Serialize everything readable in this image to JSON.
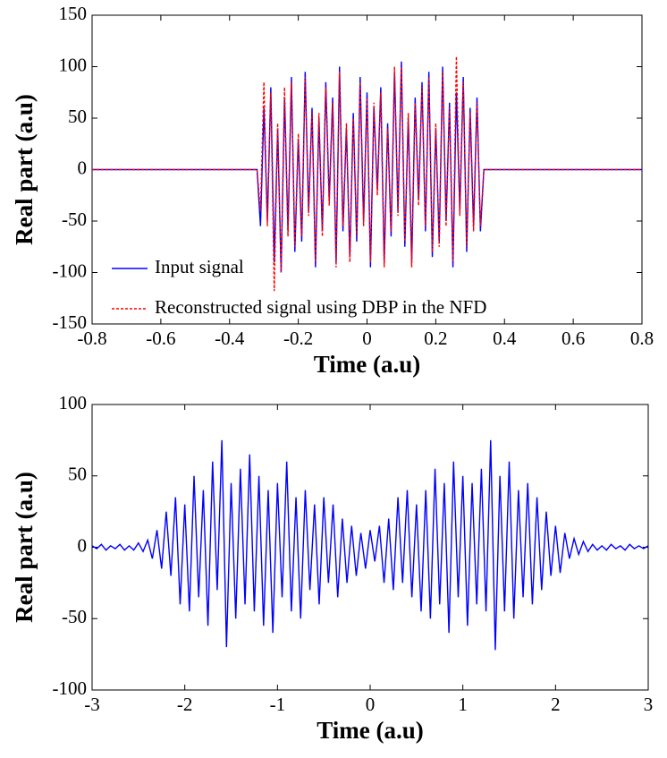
{
  "chart_data": [
    {
      "type": "line",
      "ylabel": "Real part (a.u)",
      "xlabel": "Time (a.u)",
      "xlim": [
        -0.8,
        0.8
      ],
      "xticks": [
        -0.8,
        -0.6,
        -0.4,
        -0.2,
        0,
        0.2,
        0.4,
        0.6,
        0.8
      ],
      "ylim": [
        -150,
        150
      ],
      "yticks": [
        -150,
        -100,
        -50,
        0,
        50,
        100,
        150
      ],
      "legend": "lower left",
      "x": [
        -0.8,
        -0.5,
        -0.32,
        -0.31,
        -0.3,
        -0.29,
        -0.28,
        -0.27,
        -0.26,
        -0.25,
        -0.24,
        -0.23,
        -0.22,
        -0.21,
        -0.2,
        -0.19,
        -0.18,
        -0.17,
        -0.16,
        -0.15,
        -0.14,
        -0.13,
        -0.12,
        -0.11,
        -0.1,
        -0.09,
        -0.08,
        -0.07,
        -0.06,
        -0.05,
        -0.04,
        -0.03,
        -0.02,
        -0.01,
        0,
        0.01,
        0.02,
        0.03,
        0.04,
        0.05,
        0.06,
        0.07,
        0.08,
        0.09,
        0.1,
        0.11,
        0.12,
        0.13,
        0.14,
        0.15,
        0.16,
        0.17,
        0.18,
        0.19,
        0.2,
        0.21,
        0.22,
        0.23,
        0.24,
        0.25,
        0.26,
        0.27,
        0.28,
        0.29,
        0.3,
        0.31,
        0.32,
        0.33,
        0.34,
        0.5,
        0.8
      ],
      "series": [
        {
          "name": "Input signal",
          "color": "#0000ff",
          "dash": false,
          "values": [
            0,
            0,
            0,
            -55,
            60,
            -50,
            80,
            -90,
            40,
            -100,
            70,
            -60,
            90,
            -80,
            30,
            -70,
            95,
            -40,
            60,
            -95,
            50,
            -60,
            85,
            -30,
            70,
            -90,
            100,
            -60,
            40,
            -85,
            55,
            -70,
            90,
            -50,
            75,
            -95,
            60,
            -20,
            80,
            -90,
            45,
            -65,
            95,
            -40,
            105,
            -75,
            50,
            -90,
            70,
            -30,
            85,
            -60,
            95,
            -85,
            40,
            -70,
            100,
            -50,
            65,
            -95,
            75,
            -40,
            90,
            -80,
            60,
            -55,
            70,
            -60,
            0,
            0,
            0
          ]
        },
        {
          "name": "Reconstructed signal using DBP in the NFD",
          "color": "#ff0000",
          "dash": true,
          "values": [
            0,
            0,
            0,
            -40,
            85,
            -55,
            75,
            -118,
            45,
            -100,
            80,
            -65,
            85,
            -75,
            35,
            -65,
            90,
            -45,
            55,
            -90,
            55,
            -65,
            80,
            -35,
            65,
            -95,
            95,
            -55,
            45,
            -90,
            50,
            -65,
            85,
            -55,
            70,
            -90,
            65,
            -25,
            75,
            -95,
            40,
            -60,
            100,
            -45,
            100,
            -70,
            55,
            -95,
            65,
            -35,
            80,
            -55,
            90,
            -80,
            45,
            -75,
            95,
            -55,
            60,
            -90,
            110,
            -45,
            85,
            -75,
            55,
            -60,
            65,
            -55,
            0,
            0,
            0
          ]
        }
      ]
    },
    {
      "type": "line",
      "ylabel": "Real part (a.u)",
      "xlabel": "Time (a.u)",
      "xlim": [
        -3,
        3
      ],
      "xticks": [
        -3,
        -2,
        -1,
        0,
        1,
        2,
        3
      ],
      "ylim": [
        -100,
        100
      ],
      "yticks": [
        -100,
        -50,
        0,
        50,
        100
      ],
      "x": [
        -3,
        -2.95,
        -2.9,
        -2.85,
        -2.8,
        -2.75,
        -2.7,
        -2.65,
        -2.6,
        -2.55,
        -2.5,
        -2.45,
        -2.4,
        -2.35,
        -2.3,
        -2.25,
        -2.2,
        -2.15,
        -2.1,
        -2.05,
        -2,
        -1.95,
        -1.9,
        -1.85,
        -1.8,
        -1.75,
        -1.7,
        -1.65,
        -1.6,
        -1.55,
        -1.5,
        -1.45,
        -1.4,
        -1.35,
        -1.3,
        -1.25,
        -1.2,
        -1.15,
        -1.1,
        -1.05,
        -1,
        -0.95,
        -0.9,
        -0.85,
        -0.8,
        -0.75,
        -0.7,
        -0.65,
        -0.6,
        -0.55,
        -0.5,
        -0.45,
        -0.4,
        -0.35,
        -0.3,
        -0.25,
        -0.2,
        -0.15,
        -0.1,
        -0.05,
        0,
        0.05,
        0.1,
        0.15,
        0.2,
        0.25,
        0.3,
        0.35,
        0.4,
        0.45,
        0.5,
        0.55,
        0.6,
        0.65,
        0.7,
        0.75,
        0.8,
        0.85,
        0.9,
        0.95,
        1,
        1.05,
        1.1,
        1.15,
        1.2,
        1.25,
        1.3,
        1.35,
        1.4,
        1.45,
        1.5,
        1.55,
        1.6,
        1.65,
        1.7,
        1.75,
        1.8,
        1.85,
        1.9,
        1.95,
        2,
        2.05,
        2.1,
        2.15,
        2.2,
        2.25,
        2.3,
        2.35,
        2.4,
        2.45,
        2.5,
        2.55,
        2.6,
        2.65,
        2.7,
        2.75,
        2.8,
        2.85,
        2.9,
        2.95,
        3
      ],
      "series": [
        {
          "color": "#0000ff",
          "dash": false,
          "values": [
            1,
            -1,
            2,
            -2,
            1,
            -1,
            2,
            -2,
            1,
            -2,
            3,
            -3,
            5,
            -8,
            12,
            -15,
            25,
            -20,
            35,
            -40,
            30,
            -45,
            50,
            -35,
            40,
            -55,
            60,
            -30,
            75,
            -70,
            45,
            -50,
            55,
            -40,
            65,
            -45,
            50,
            -55,
            40,
            -60,
            45,
            -35,
            60,
            -45,
            35,
            -50,
            40,
            -30,
            30,
            -40,
            35,
            -25,
            30,
            -35,
            20,
            -25,
            15,
            -20,
            10,
            -15,
            12,
            -10,
            15,
            -25,
            20,
            -30,
            35,
            -25,
            40,
            -35,
            30,
            -45,
            40,
            -50,
            55,
            -40,
            45,
            -60,
            60,
            -35,
            50,
            -55,
            45,
            -40,
            55,
            -45,
            75,
            -72,
            50,
            -45,
            60,
            -50,
            40,
            -35,
            45,
            -40,
            35,
            -30,
            25,
            -20,
            15,
            -18,
            10,
            -8,
            6,
            -5,
            4,
            -3,
            2,
            -2,
            1,
            -2,
            2,
            -1,
            1,
            -2,
            2,
            -1,
            1,
            -1,
            1
          ]
        }
      ]
    }
  ]
}
